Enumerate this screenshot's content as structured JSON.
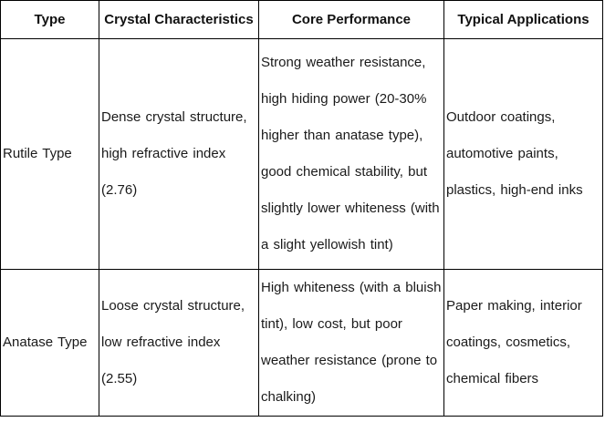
{
  "table": {
    "headers": [
      "Type",
      "Crystal Characteristics",
      "Core Performance",
      "Typical Applications"
    ],
    "rows": [
      {
        "type": "Rutile Type",
        "crystal": "Dense crystal structure,\nhigh refractive index\n(2.76)",
        "performance": "Strong weather resistance,\nhigh hiding power (20-30%\nhigher than anatase type),\ngood chemical stability, but\nslightly lower whiteness (with\na slight yellowish tint)",
        "applications": "Outdoor coatings,\nautomotive paints,\nplastics, high-end inks"
      },
      {
        "type": "Anatase Type",
        "crystal": "Loose crystal structure,\nlow refractive index\n(2.55)",
        "performance": "High whiteness (with a bluish\ntint), low cost, but poor\nweather resistance (prone to\nchalking)",
        "applications": "Paper making, interior\ncoatings, cosmetics,\nchemical fibers"
      }
    ]
  }
}
